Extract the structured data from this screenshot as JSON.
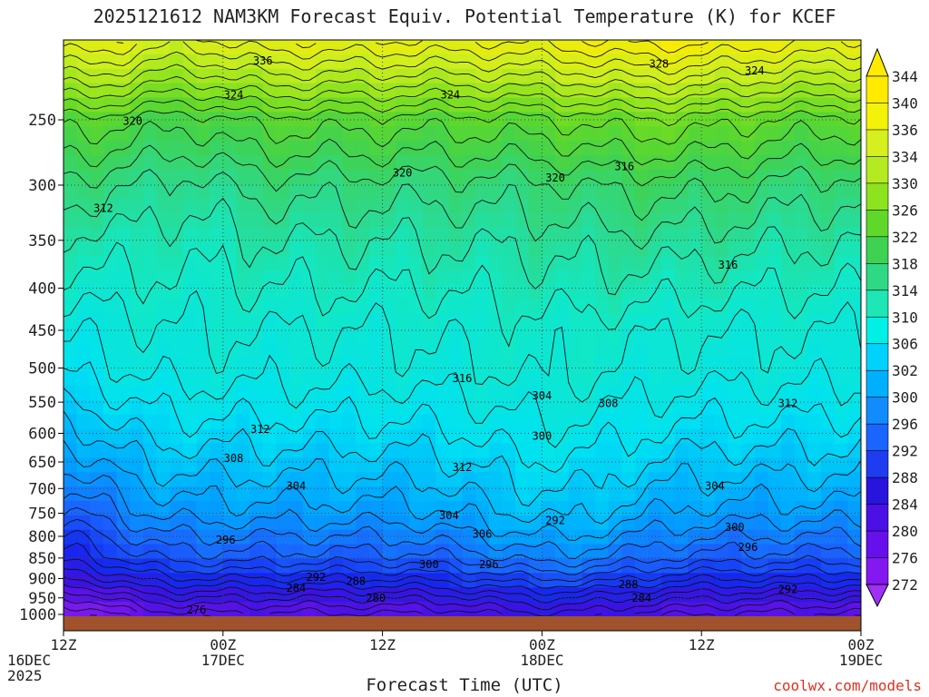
{
  "chart_data": {
    "type": "heatmap",
    "title": "2025121612 NAM3KM Forecast Equiv. Potential Temperature (K) for KCEF",
    "xlabel": "Forecast Time (UTC)",
    "ylabel": "",
    "credit": "coolwx.com/models",
    "y_axis": {
      "ticks": [
        250,
        300,
        350,
        400,
        450,
        500,
        550,
        600,
        650,
        700,
        750,
        800,
        850,
        900,
        950,
        1000
      ],
      "range": [
        200,
        1000
      ],
      "scale": "log-pressure"
    },
    "x_axis": {
      "ticks": [
        {
          "line1": "12Z",
          "line2": "16DEC",
          "line3": "2025"
        },
        {
          "line1": "00Z",
          "line2": "17DEC",
          "line3": ""
        },
        {
          "line1": "12Z",
          "line2": "",
          "line3": ""
        },
        {
          "line1": "00Z",
          "line2": "18DEC",
          "line3": ""
        },
        {
          "line1": "12Z",
          "line2": "",
          "line3": ""
        },
        {
          "line1": "00Z",
          "line2": "19DEC",
          "line3": ""
        }
      ],
      "hours": [
        0,
        12,
        24,
        36,
        48,
        60
      ],
      "range": [
        0,
        60
      ]
    },
    "colorbar": {
      "labels": [
        344,
        340,
        336,
        334,
        330,
        326,
        322,
        318,
        314,
        310,
        306,
        302,
        300,
        296,
        292,
        288,
        284,
        280,
        276,
        272
      ],
      "colors": [
        "#ffea00",
        "#f2f20a",
        "#d6ef1e",
        "#b4ea22",
        "#8ce31e",
        "#5fd82a",
        "#3fd252",
        "#2fd884",
        "#1ee6b4",
        "#00f0e6",
        "#00d2ff",
        "#00b0ff",
        "#108cff",
        "#1a64ff",
        "#1e3cf0",
        "#2814dc",
        "#4a10e6",
        "#6610ec",
        "#8418f0",
        "#a030f6"
      ]
    },
    "heatmap_stops": [
      {
        "theta": 272,
        "color": "#9a2cf2"
      },
      {
        "theta": 278,
        "color": "#6a12ec"
      },
      {
        "theta": 284,
        "color": "#3a12e2"
      },
      {
        "theta": 290,
        "color": "#1428f0"
      },
      {
        "theta": 296,
        "color": "#1a64ff"
      },
      {
        "theta": 302,
        "color": "#00a8ff"
      },
      {
        "theta": 308,
        "color": "#00e2f2"
      },
      {
        "theta": 314,
        "color": "#12e8c4"
      },
      {
        "theta": 318,
        "color": "#2ed98a"
      },
      {
        "theta": 322,
        "color": "#3fd252"
      },
      {
        "theta": 326,
        "color": "#5fd82a"
      },
      {
        "theta": 330,
        "color": "#8ce31e"
      },
      {
        "theta": 336,
        "color": "#cdee1e"
      },
      {
        "theta": 344,
        "color": "#ffea00"
      }
    ],
    "contour_interval": 2,
    "contour_labels": [
      {
        "text": "336",
        "hour": 15.0,
        "p": 212
      },
      {
        "text": "328",
        "hour": 44.8,
        "p": 214
      },
      {
        "text": "324",
        "hour": 52.0,
        "p": 218
      },
      {
        "text": "324",
        "hour": 12.8,
        "p": 233
      },
      {
        "text": "324",
        "hour": 29.1,
        "p": 233
      },
      {
        "text": "320",
        "hour": 5.2,
        "p": 251
      },
      {
        "text": "320",
        "hour": 25.5,
        "p": 290
      },
      {
        "text": "320",
        "hour": 37.0,
        "p": 294
      },
      {
        "text": "316",
        "hour": 42.2,
        "p": 285
      },
      {
        "text": "312",
        "hour": 3.0,
        "p": 320
      },
      {
        "text": "316",
        "hour": 50.0,
        "p": 375
      },
      {
        "text": "316",
        "hour": 30.0,
        "p": 515
      },
      {
        "text": "304",
        "hour": 36.0,
        "p": 540
      },
      {
        "text": "308",
        "hour": 41.0,
        "p": 552
      },
      {
        "text": "312",
        "hour": 54.5,
        "p": 552
      },
      {
        "text": "312",
        "hour": 14.8,
        "p": 593
      },
      {
        "text": "300",
        "hour": 36.0,
        "p": 605
      },
      {
        "text": "308",
        "hour": 12.8,
        "p": 643
      },
      {
        "text": "312",
        "hour": 30.0,
        "p": 660
      },
      {
        "text": "304",
        "hour": 17.5,
        "p": 695
      },
      {
        "text": "304",
        "hour": 49.0,
        "p": 695
      },
      {
        "text": "304",
        "hour": 29.0,
        "p": 755
      },
      {
        "text": "292",
        "hour": 37.0,
        "p": 765
      },
      {
        "text": "300",
        "hour": 50.5,
        "p": 780
      },
      {
        "text": "306",
        "hour": 31.5,
        "p": 795
      },
      {
        "text": "296",
        "hour": 12.2,
        "p": 808
      },
      {
        "text": "296",
        "hour": 51.5,
        "p": 825
      },
      {
        "text": "300",
        "hour": 27.5,
        "p": 865
      },
      {
        "text": "296",
        "hour": 32.0,
        "p": 865
      },
      {
        "text": "292",
        "hour": 19.0,
        "p": 897
      },
      {
        "text": "288",
        "hour": 22.0,
        "p": 907
      },
      {
        "text": "288",
        "hour": 42.5,
        "p": 915
      },
      {
        "text": "292",
        "hour": 54.5,
        "p": 928
      },
      {
        "text": "284",
        "hour": 17.5,
        "p": 925
      },
      {
        "text": "280",
        "hour": 23.5,
        "p": 950
      },
      {
        "text": "284",
        "hour": 43.5,
        "p": 950
      },
      {
        "text": "276",
        "hour": 10.0,
        "p": 982
      }
    ]
  }
}
